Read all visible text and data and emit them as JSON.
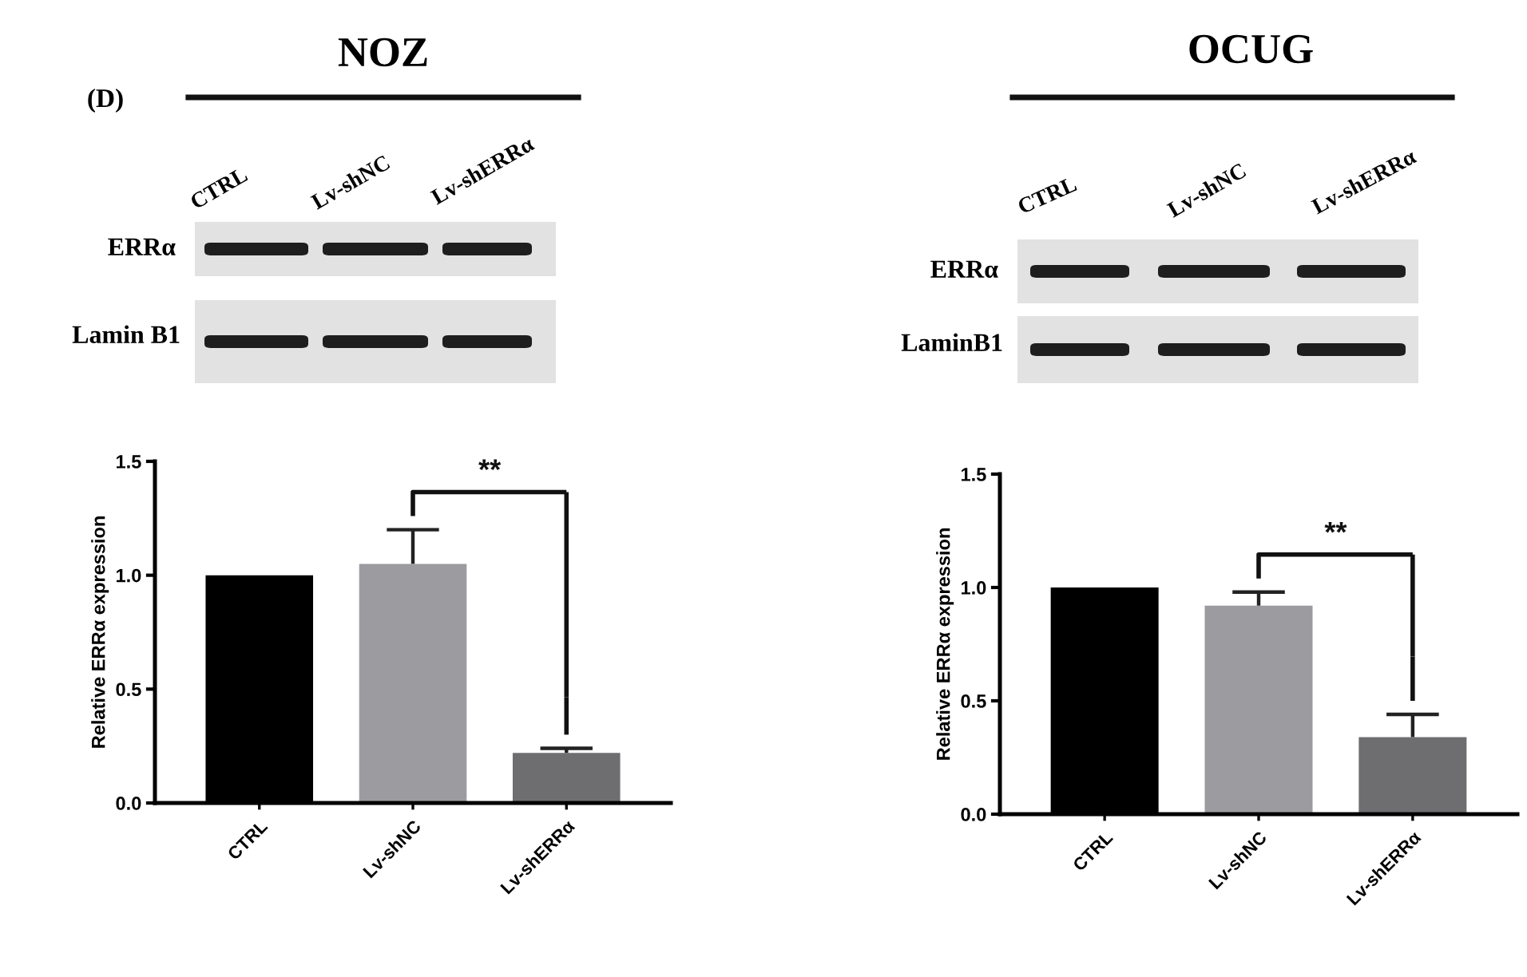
{
  "chart_data": [
    {
      "type": "bar",
      "title": "NOZ",
      "ylabel": "Relative ERRα expression",
      "categories": [
        "CTRL",
        "Lv-shNC",
        "Lv-shERRα"
      ],
      "values": [
        1.0,
        1.05,
        0.22
      ],
      "colors": [
        "#000000",
        "#9c9ca0",
        "#6e6e70"
      ],
      "errors": [
        null,
        [
          1.05,
          1.2
        ],
        [
          0.22,
          0.24
        ]
      ],
      "ylim": [
        0,
        1.5
      ],
      "yticks": [
        {
          "value": 0,
          "label": "0.0"
        },
        {
          "value": 0.5,
          "label": "0.5"
        },
        {
          "value": 1,
          "label": "1.0"
        },
        {
          "value": 1.5,
          "label": "1.5"
        }
      ],
      "annotations": [
        "**",
        "(D)",
        "CTRL",
        "Lv-shNC",
        "Lv-shERRα",
        "ERRα",
        "Lamin B1"
      ]
    },
    {
      "type": "bar",
      "title": "OCUG",
      "ylabel": "Relative ERRα expression",
      "categories": [
        "CTRL",
        "Lv-shNC",
        "Lv-shERRα"
      ],
      "values": [
        1.0,
        0.92,
        0.34
      ],
      "colors": [
        "#000000",
        "#9c9ca0",
        "#6e6e70"
      ],
      "errors": [
        null,
        [
          0.92,
          0.98
        ],
        [
          0.34,
          0.44
        ]
      ],
      "ylim": [
        0,
        1.5
      ],
      "yticks": [
        {
          "value": 0,
          "label": "0.0"
        },
        {
          "value": 0.5,
          "label": "0.5"
        },
        {
          "value": 1,
          "label": "1.0"
        },
        {
          "value": 1.5,
          "label": "1.5"
        }
      ],
      "annotations": [
        "**",
        "CTRL",
        "Lv-shNC",
        "Lv-shERRα",
        "ERRα",
        "LaminB1"
      ]
    }
  ]
}
